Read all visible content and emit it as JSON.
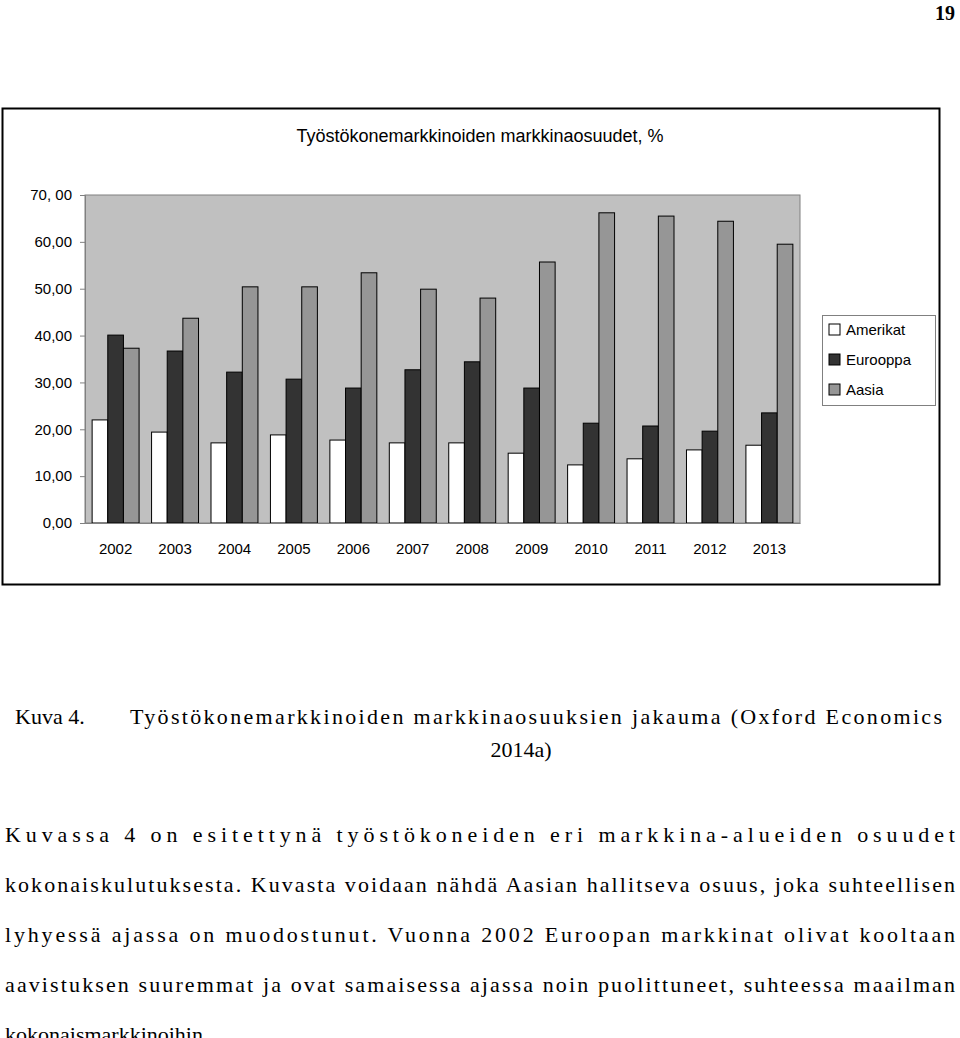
{
  "page": {
    "number": "19",
    "caption_label": "Kuva 4.",
    "caption_lines": [
      "Työstökonemarkkinoiden markkinaosuuksien jakauma (Oxford Economics",
      "2014a)"
    ],
    "paragraph_lines": [
      "Kuvassa 4 on esitettynä työstökoneiden eri markkina-alueiden osuudet",
      "kokonaiskulutuksesta. Kuvasta voidaan nähdä Aasian hallitseva osuus, joka suhteellisen",
      "lyhyessä ajassa on muodostunut. Vuonna 2002 Euroopan markkinat olivat kooltaan",
      "aavistuksen suuremmat ja ovat samaisessa ajassa noin puolittuneet, suhteessa maailman",
      "kokonaismarkkinoihin."
    ]
  },
  "chart_data": {
    "type": "bar",
    "title": "Työstökonemarkkinoiden markkinaosuudet, %",
    "categories": [
      "2002",
      "2003",
      "2004",
      "2005",
      "2006",
      "2007",
      "2008",
      "2009",
      "2010",
      "2011",
      "2012",
      "2013"
    ],
    "series": [
      {
        "name": "Amerikat",
        "color": "#ffffff",
        "values": [
          22.0,
          19.4,
          17.1,
          18.8,
          17.7,
          17.1,
          17.1,
          14.9,
          12.4,
          13.7,
          15.6,
          16.6
        ]
      },
      {
        "name": "Eurooppa",
        "color": "#333333",
        "values": [
          40.1,
          36.7,
          32.2,
          30.7,
          28.8,
          32.7,
          34.4,
          28.8,
          21.3,
          20.7,
          19.6,
          23.5
        ]
      },
      {
        "name": "Aasia",
        "color": "#969696",
        "values": [
          37.3,
          43.7,
          50.4,
          50.4,
          53.4,
          49.9,
          48.0,
          55.7,
          66.2,
          65.5,
          64.4,
          59.5
        ]
      }
    ],
    "ylim": [
      0,
      70
    ],
    "yticks": [
      {
        "value": 0,
        "label": "0,00"
      },
      {
        "value": 10,
        "label": "10,00"
      },
      {
        "value": 20,
        "label": "20,00"
      },
      {
        "value": 30,
        "label": "30,00"
      },
      {
        "value": 40,
        "label": "40,00"
      },
      {
        "value": 50,
        "label": "50,00"
      },
      {
        "value": 60,
        "label": "60,00"
      },
      {
        "value": 70,
        "label": "70, 00"
      }
    ],
    "grid": false,
    "legend": "right"
  }
}
